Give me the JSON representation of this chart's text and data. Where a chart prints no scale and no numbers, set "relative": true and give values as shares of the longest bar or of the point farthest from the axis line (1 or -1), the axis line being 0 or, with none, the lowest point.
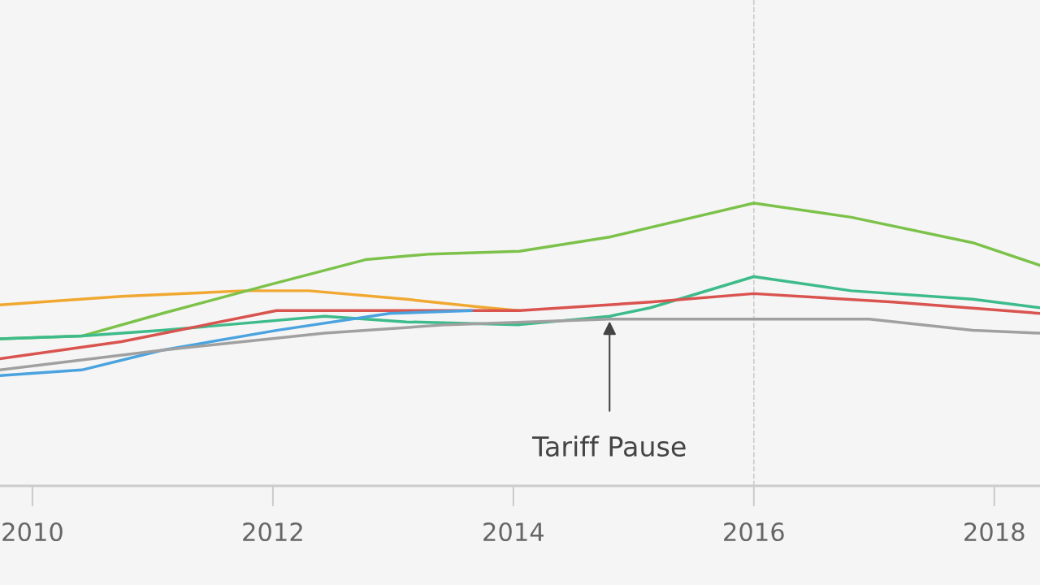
{
  "chart_data": {
    "type": "line",
    "relative": true,
    "xlim": [
      2009.73,
      2018.38
    ],
    "xticks": [
      2010,
      2012,
      2014,
      2016,
      2018
    ],
    "grid": false,
    "marker": "none",
    "line_style": "solid",
    "series": [
      {
        "color": "#f0a830",
        "x": [
          2009.73,
          2010.74,
          2011.76,
          2012.3,
          2013.11,
          2013.78,
          2014.05
        ],
        "values": [
          0.64,
          0.67,
          0.69,
          0.69,
          0.66,
          0.63,
          0.62
        ]
      },
      {
        "color": "#7cc24a",
        "x": [
          2009.73,
          2010.41,
          2011.08,
          2011.96,
          2012.77,
          2013.31,
          2014.05,
          2014.8,
          2016.0,
          2016.81,
          2017.82,
          2018.38
        ],
        "values": [
          0.52,
          0.53,
          0.61,
          0.71,
          0.8,
          0.82,
          0.83,
          0.88,
          1.0,
          0.95,
          0.86,
          0.78
        ]
      },
      {
        "color": "#3dbb8a",
        "x": [
          2009.73,
          2010.41,
          2011.08,
          2012.43,
          2013.11,
          2014.05,
          2014.8,
          2015.14,
          2016.0,
          2016.81,
          2017.82,
          2018.38
        ],
        "values": [
          0.52,
          0.53,
          0.55,
          0.6,
          0.58,
          0.57,
          0.6,
          0.63,
          0.74,
          0.69,
          0.66,
          0.63
        ]
      },
      {
        "color": "#d9534f",
        "x": [
          2009.73,
          2010.74,
          2012.03,
          2013.11,
          2014.05,
          2015.14,
          2016.0,
          2017.16,
          2018.38
        ],
        "values": [
          0.45,
          0.51,
          0.62,
          0.62,
          0.62,
          0.65,
          0.68,
          0.65,
          0.61
        ]
      },
      {
        "color": "#4aa3df",
        "x": [
          2009.73,
          2010.41,
          2011.08,
          2012.03,
          2012.97,
          2013.65
        ],
        "values": [
          0.39,
          0.41,
          0.48,
          0.55,
          0.61,
          0.62
        ]
      },
      {
        "color": "#a0a0a0",
        "x": [
          2009.73,
          2011.08,
          2012.43,
          2013.45,
          2014.8,
          2016.0,
          2016.96,
          2017.82,
          2018.38
        ],
        "values": [
          0.41,
          0.48,
          0.54,
          0.57,
          0.59,
          0.59,
          0.59,
          0.55,
          0.54
        ]
      }
    ],
    "ref_lines": [
      {
        "axis": "x",
        "value": 2016,
        "color": "#cccccc",
        "line_style": "dashed"
      }
    ],
    "annotations": [
      {
        "text": "Tariff Pause",
        "x": 2014.8,
        "y": 0.59
      }
    ]
  }
}
